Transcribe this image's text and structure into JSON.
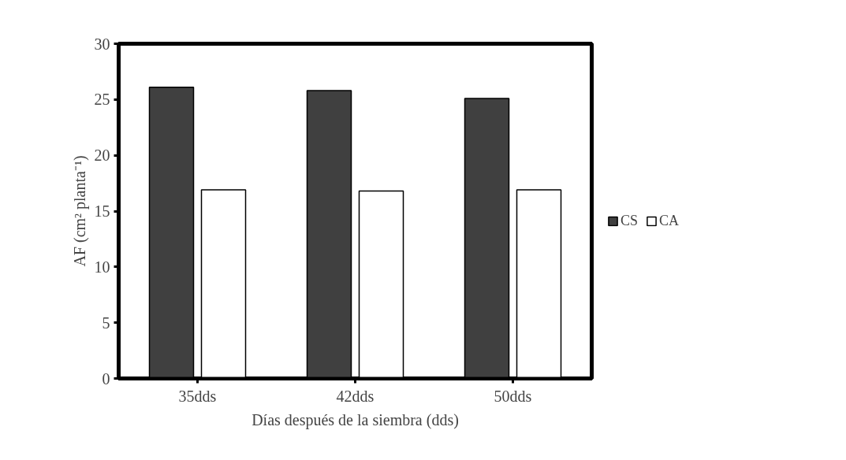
{
  "chart_data": {
    "type": "bar",
    "xlabel": "Días después de la siembra (dds)",
    "ylabel": "AF (cm² planta⁻¹)",
    "categories": [
      "35dds",
      "42dds",
      "50dds"
    ],
    "series": [
      {
        "name": "CS",
        "color": "#404040",
        "values": [
          26.1,
          25.8,
          25.1
        ]
      },
      {
        "name": "CA",
        "color": "#ffffff",
        "values": [
          16.9,
          16.8,
          16.9
        ]
      }
    ],
    "ylim": [
      0,
      30
    ],
    "yticks": [
      0,
      5,
      10,
      15,
      20,
      25,
      30
    ],
    "grid": false,
    "legend": "right"
  }
}
